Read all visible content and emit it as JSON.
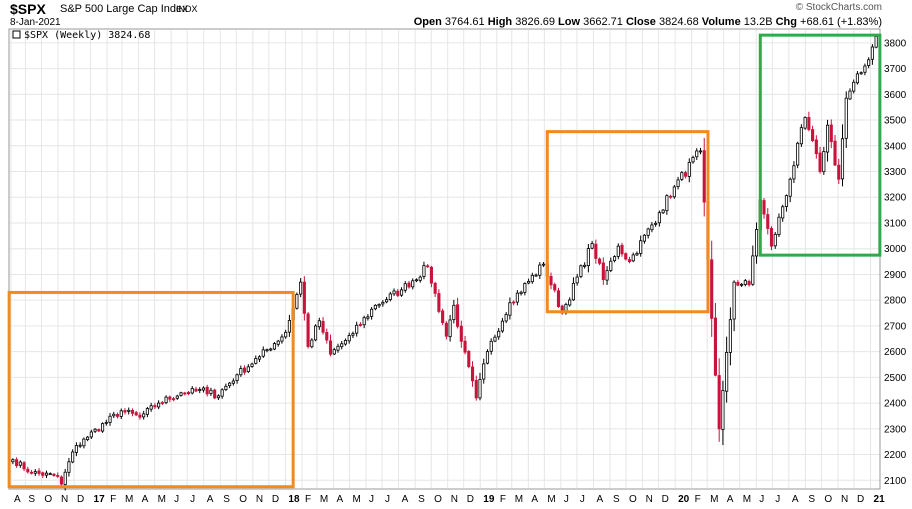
{
  "header": {
    "symbol": "$SPX",
    "name": "S&P 500 Large Cap Index",
    "exchange": "INDX",
    "date": "8-Jan-2021",
    "watermark": "© StockCharts.com",
    "ohlc": {
      "open_label": "Open",
      "open": "3764.61",
      "high_label": "High",
      "high": "3826.69",
      "low_label": "Low",
      "low": "3662.71",
      "close_label": "Close",
      "close": "3824.68",
      "volume_label": "Volume",
      "volume": "13.2B",
      "chg_label": "Chg",
      "chg": "+68.61 (+1.83%)"
    }
  },
  "legend": {
    "text": "$SPX (Weekly) 3824.68"
  },
  "colors": {
    "up": "#000000",
    "down": "#c8143c",
    "orange_box": "#f28a1e",
    "green_box": "#2eaa4a",
    "grid": "#e6e6e6"
  },
  "chart_data": {
    "type": "candlestick",
    "title": "$SPX (Weekly) 3824.68",
    "xlabel": "",
    "ylabel": "",
    "ylim": [
      2070,
      3850
    ],
    "yticks": [
      2100,
      2200,
      2300,
      2400,
      2500,
      2600,
      2700,
      2800,
      2900,
      3000,
      3100,
      3200,
      3300,
      3400,
      3500,
      3600,
      3700,
      3800
    ],
    "x_tick_labels": [
      "A",
      "S",
      "O",
      "N",
      "D",
      "17",
      "F",
      "M",
      "A",
      "M",
      "J",
      "J",
      "A",
      "S",
      "O",
      "N",
      "D",
      "18",
      "F",
      "M",
      "A",
      "M",
      "J",
      "J",
      "A",
      "S",
      "O",
      "N",
      "D",
      "19",
      "F",
      "M",
      "A",
      "M",
      "J",
      "J",
      "A",
      "S",
      "O",
      "N",
      "D",
      "20",
      "F",
      "M",
      "A",
      "M",
      "J",
      "J",
      "A",
      "S",
      "O",
      "N",
      "D",
      "21"
    ],
    "x_tick_bold": [
      "17",
      "18",
      "19",
      "20",
      "21"
    ],
    "grid": true,
    "axis_position": "right",
    "start_week": "2016-08-05",
    "anchors": [
      [
        "2016-08-05",
        2180
      ],
      [
        "2016-09-09",
        2130
      ],
      [
        "2016-10-28",
        2115
      ],
      [
        "2016-11-04",
        2085
      ],
      [
        "2016-11-25",
        2210
      ],
      [
        "2016-12-16",
        2260
      ],
      [
        "2017-02-24",
        2370
      ],
      [
        "2017-03-31",
        2345
      ],
      [
        "2017-05-05",
        2400
      ],
      [
        "2017-06-16",
        2440
      ],
      [
        "2017-08-11",
        2450
      ],
      [
        "2017-08-18",
        2420
      ],
      [
        "2017-09-29",
        2510
      ],
      [
        "2017-11-10",
        2580
      ],
      [
        "2017-12-29",
        2675
      ],
      [
        "2018-01-26",
        2870
      ],
      [
        "2018-02-09",
        2620
      ],
      [
        "2018-03-02",
        2720
      ],
      [
        "2018-03-23",
        2590
      ],
      [
        "2018-05-04",
        2670
      ],
      [
        "2018-06-15",
        2780
      ],
      [
        "2018-08-03",
        2840
      ],
      [
        "2018-09-21",
        2930
      ],
      [
        "2018-10-26",
        2660
      ],
      [
        "2018-11-09",
        2780
      ],
      [
        "2018-11-23",
        2640
      ],
      [
        "2018-12-21",
        2420
      ],
      [
        "2019-01-11",
        2600
      ],
      [
        "2019-02-22",
        2790
      ],
      [
        "2019-04-26",
        2940
      ],
      [
        "2019-05-31",
        2750
      ],
      [
        "2019-07-26",
        3020
      ],
      [
        "2019-08-16",
        2880
      ],
      [
        "2019-09-13",
        3010
      ],
      [
        "2019-10-04",
        2950
      ],
      [
        "2019-11-29",
        3140
      ],
      [
        "2019-12-27",
        3240
      ],
      [
        "2020-02-14",
        3380
      ],
      [
        "2020-03-20",
        2300
      ],
      [
        "2020-04-17",
        2870
      ],
      [
        "2020-05-15",
        2860
      ],
      [
        "2020-06-05",
        3190
      ],
      [
        "2020-06-26",
        3010
      ],
      [
        "2020-07-31",
        3270
      ],
      [
        "2020-08-28",
        3510
      ],
      [
        "2020-09-25",
        3300
      ],
      [
        "2020-10-09",
        3480
      ],
      [
        "2020-10-30",
        3270
      ],
      [
        "2020-11-13",
        3585
      ],
      [
        "2020-12-18",
        3710
      ],
      [
        "2021-01-08",
        3824.68
      ]
    ],
    "annotations": [
      {
        "type": "rect",
        "color": "orange",
        "x_start": "2016-08-05",
        "x_end": "2018-01-05",
        "y_low": 2075,
        "y_high": 2830
      },
      {
        "type": "rect",
        "color": "orange",
        "x_start": "2019-05-10",
        "x_end": "2020-02-21",
        "y_low": 2755,
        "y_high": 3455
      },
      {
        "type": "rect",
        "color": "green",
        "x_start": "2020-06-12",
        "x_end": "2021-01-08",
        "y_low": 2975,
        "y_high": 3830
      }
    ]
  }
}
